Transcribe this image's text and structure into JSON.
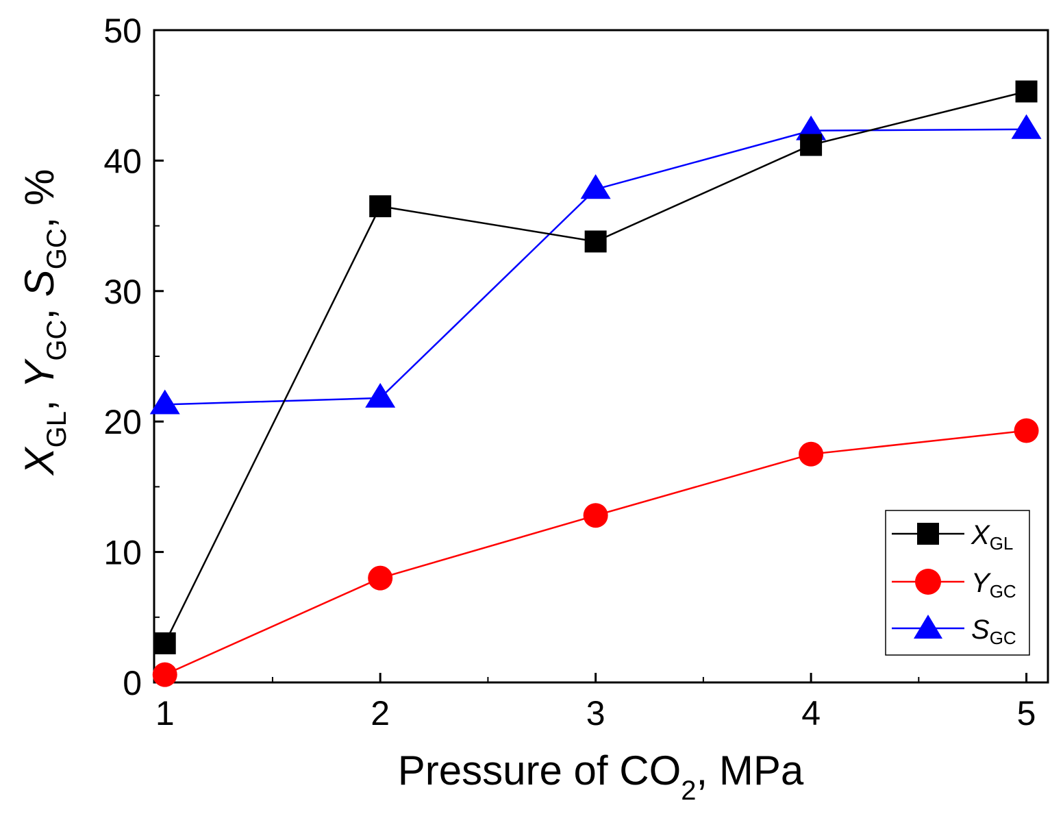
{
  "chart_data": {
    "type": "line",
    "title": "",
    "xlabel": {
      "prefix": "Pressure of CO",
      "subscript": "2",
      "suffix": ", MPa"
    },
    "ylabel": {
      "parts": [
        {
          "main": "X",
          "sub": "GL",
          "sep": ", "
        },
        {
          "main": "Y",
          "sub": "GC",
          "sep": ", "
        },
        {
          "main": "S",
          "sub": "GC",
          "sep": ", %"
        }
      ]
    },
    "x": [
      1,
      2,
      3,
      4,
      5
    ],
    "xlim": [
      0.95,
      5.1
    ],
    "ylim": [
      0,
      50
    ],
    "xticks": [
      "1",
      "2",
      "3",
      "4",
      "5"
    ],
    "yticks": [
      "0",
      "10",
      "20",
      "30",
      "40",
      "50"
    ],
    "grid": false,
    "legend_position": "bottom-right",
    "series": [
      {
        "name": "X",
        "sub": "GL",
        "key": "xgl",
        "color": "#000000",
        "marker": "square",
        "values": [
          3.0,
          36.5,
          33.8,
          41.2,
          45.3
        ]
      },
      {
        "name": "Y",
        "sub": "GC",
        "key": "ygc",
        "color": "#ff0000",
        "marker": "circle",
        "values": [
          0.6,
          8.0,
          12.8,
          17.5,
          19.3
        ]
      },
      {
        "name": "S",
        "sub": "GC",
        "key": "sgc",
        "color": "#0000ff",
        "marker": "triangle",
        "values": [
          21.3,
          21.8,
          37.8,
          42.3,
          42.4
        ]
      }
    ]
  }
}
